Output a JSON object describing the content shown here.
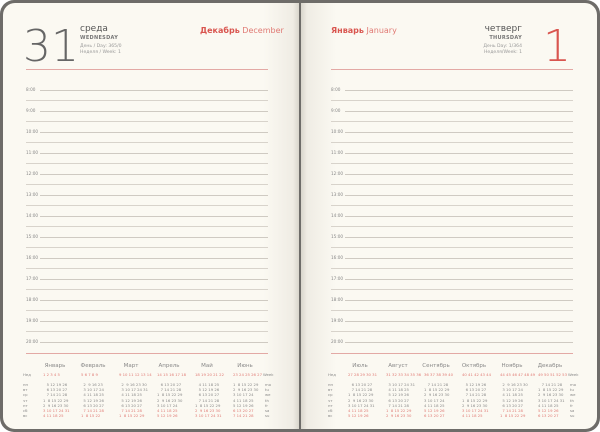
{
  "left_page": {
    "day_number": "31",
    "weekday_ru": "среда",
    "weekday_en": "WEDNESDAY",
    "day_of_year": "День / Day: 365/0",
    "week": "Неделя / Week: 1",
    "month_ru": "Декабрь",
    "month_en": "December"
  },
  "right_page": {
    "day_number": "1",
    "weekday_ru": "четверг",
    "weekday_en": "THURSDAY",
    "day_of_year": "День Day: 1/364",
    "week": "Неделя/Week: 1",
    "month_ru": "Январь",
    "month_en": "January"
  },
  "hours": [
    "8:00",
    "9:00",
    "10:00",
    "11:00",
    "12:00",
    "13:00",
    "14:00",
    "15:00",
    "16:00",
    "17:00",
    "18:00",
    "19:00",
    "20:00"
  ],
  "colors": {
    "accent": "#d9554f",
    "page": "#fbf9f2",
    "cover": "#6e6c69"
  },
  "calendar_left": {
    "week_label": "Нед",
    "week_label_en": "Week",
    "days_ru": [
      "пн",
      "вт",
      "ср",
      "чт",
      "пт",
      "сб",
      "вс"
    ],
    "days_en": [
      "mo",
      "tu",
      "we",
      "th",
      "fr",
      "sa",
      "su"
    ],
    "months": [
      {
        "name": "Январь",
        "weeks": "1  2  3  4  5",
        "rows": [
          "   5 12 19 26",
          "   6 13 20 27",
          "   7 14 21 28",
          "1  8 15 22 29",
          "2  9 16 23 30",
          "3 10 17 24 31",
          "4 11 18 25"
        ]
      },
      {
        "name": "Февраль",
        "weeks": "5  6  7  8  9",
        "rows": [
          "  2  9 16 23",
          "  3 10 17 24",
          "  4 11 18 25",
          "  5 12 19 26",
          "  6 13 20 27",
          "  7 14 21 28",
          "1  8 15 22"
        ]
      },
      {
        "name": "Март",
        "weeks": "9 10 11 12 13 14",
        "rows": [
          "  2  9 16 23 30",
          "  3 10 17 24 31",
          "  4 11 18 25",
          "  5 12 19 26",
          "  6 13 20 27",
          "  7 14 21 28",
          "1  8 15 22 29"
        ]
      },
      {
        "name": "Апрель",
        "weeks": "14 15 16 17 18",
        "rows": [
          "   6 13 20 27",
          "   7 14 21 28",
          "1  8 15 22 29",
          "2  9 16 23 30",
          "3 10 17 24",
          "4 11 18 25",
          "5 12 19 26"
        ]
      },
      {
        "name": "Май",
        "weeks": "18 19 20 21 22",
        "rows": [
          "   4 11 18 25",
          "   5 12 19 26",
          "   6 13 20 27",
          "   7 14 21 28",
          "1  8 15 22 29",
          "2  9 16 23 30",
          "3 10 17 24 31"
        ]
      },
      {
        "name": "Июнь",
        "weeks": "23 24 25 26 27",
        "rows": [
          "1  8 15 22 29",
          "2  9 16 23 30",
          "3 10 17 24",
          "4 11 18 25",
          "5 12 19 26",
          "6 13 20 27",
          "7 14 21 28"
        ]
      }
    ]
  },
  "calendar_right": {
    "week_label": "Нед",
    "week_label_en": "Week",
    "days_ru": [
      "пн",
      "вт",
      "ср",
      "чт",
      "пт",
      "сб",
      "вс"
    ],
    "days_en": [
      "mo",
      "tu",
      "we",
      "th",
      "fr",
      "sa",
      "su"
    ],
    "months": [
      {
        "name": "Июль",
        "weeks": "27 28 29 30 31",
        "rows": [
          "   6 13 20 27",
          "   7 14 21 28",
          "1  8 15 22 29",
          "2  9 16 23 30",
          "3 10 17 24 31",
          "4 11 18 25",
          "5 12 19 26"
        ]
      },
      {
        "name": "Август",
        "weeks": "31 32 33 34 35 36",
        "rows": [
          "  3 10 17 24 31",
          "  4 11 18 25",
          "  5 12 19 26",
          "  6 13 20 27",
          "  7 14 21 28",
          "1  8 15 22 29",
          "2  9 16 23 30"
        ]
      },
      {
        "name": "Сентябрь",
        "weeks": "36 37 38 39 40",
        "rows": [
          "   7 14 21 28",
          "1  8 15 22 29",
          "2  9 16 23 30",
          "3 10 17 24",
          "4 11 18 25",
          "5 12 19 26",
          "6 13 20 27"
        ]
      },
      {
        "name": "Октябрь",
        "weeks": "40 41 42 43 44",
        "rows": [
          "   5 12 19 26",
          "   6 13 20 27",
          "   7 14 21 28",
          "1  8 15 22 29",
          "2  9 16 23 30",
          "3 10 17 24 31",
          "4 11 18 25"
        ]
      },
      {
        "name": "Ноябрь",
        "weeks": "44 45 46 47 48 49",
        "rows": [
          "  2  9 16 23 30",
          "  3 10 17 24",
          "  4 11 18 25",
          "  5 12 19 26",
          "  6 13 20 27",
          "  7 14 21 28",
          "1  8 15 22 29"
        ]
      },
      {
        "name": "Декабрь",
        "weeks": "49 50 51 52 53",
        "rows": [
          "   7 14 21 28",
          "1  8 15 22 29",
          "2  9 16 23 30",
          "3 10 17 24 31",
          "4 11 18 25",
          "5 12 19 26",
          "6 13 20 27"
        ]
      }
    ]
  }
}
